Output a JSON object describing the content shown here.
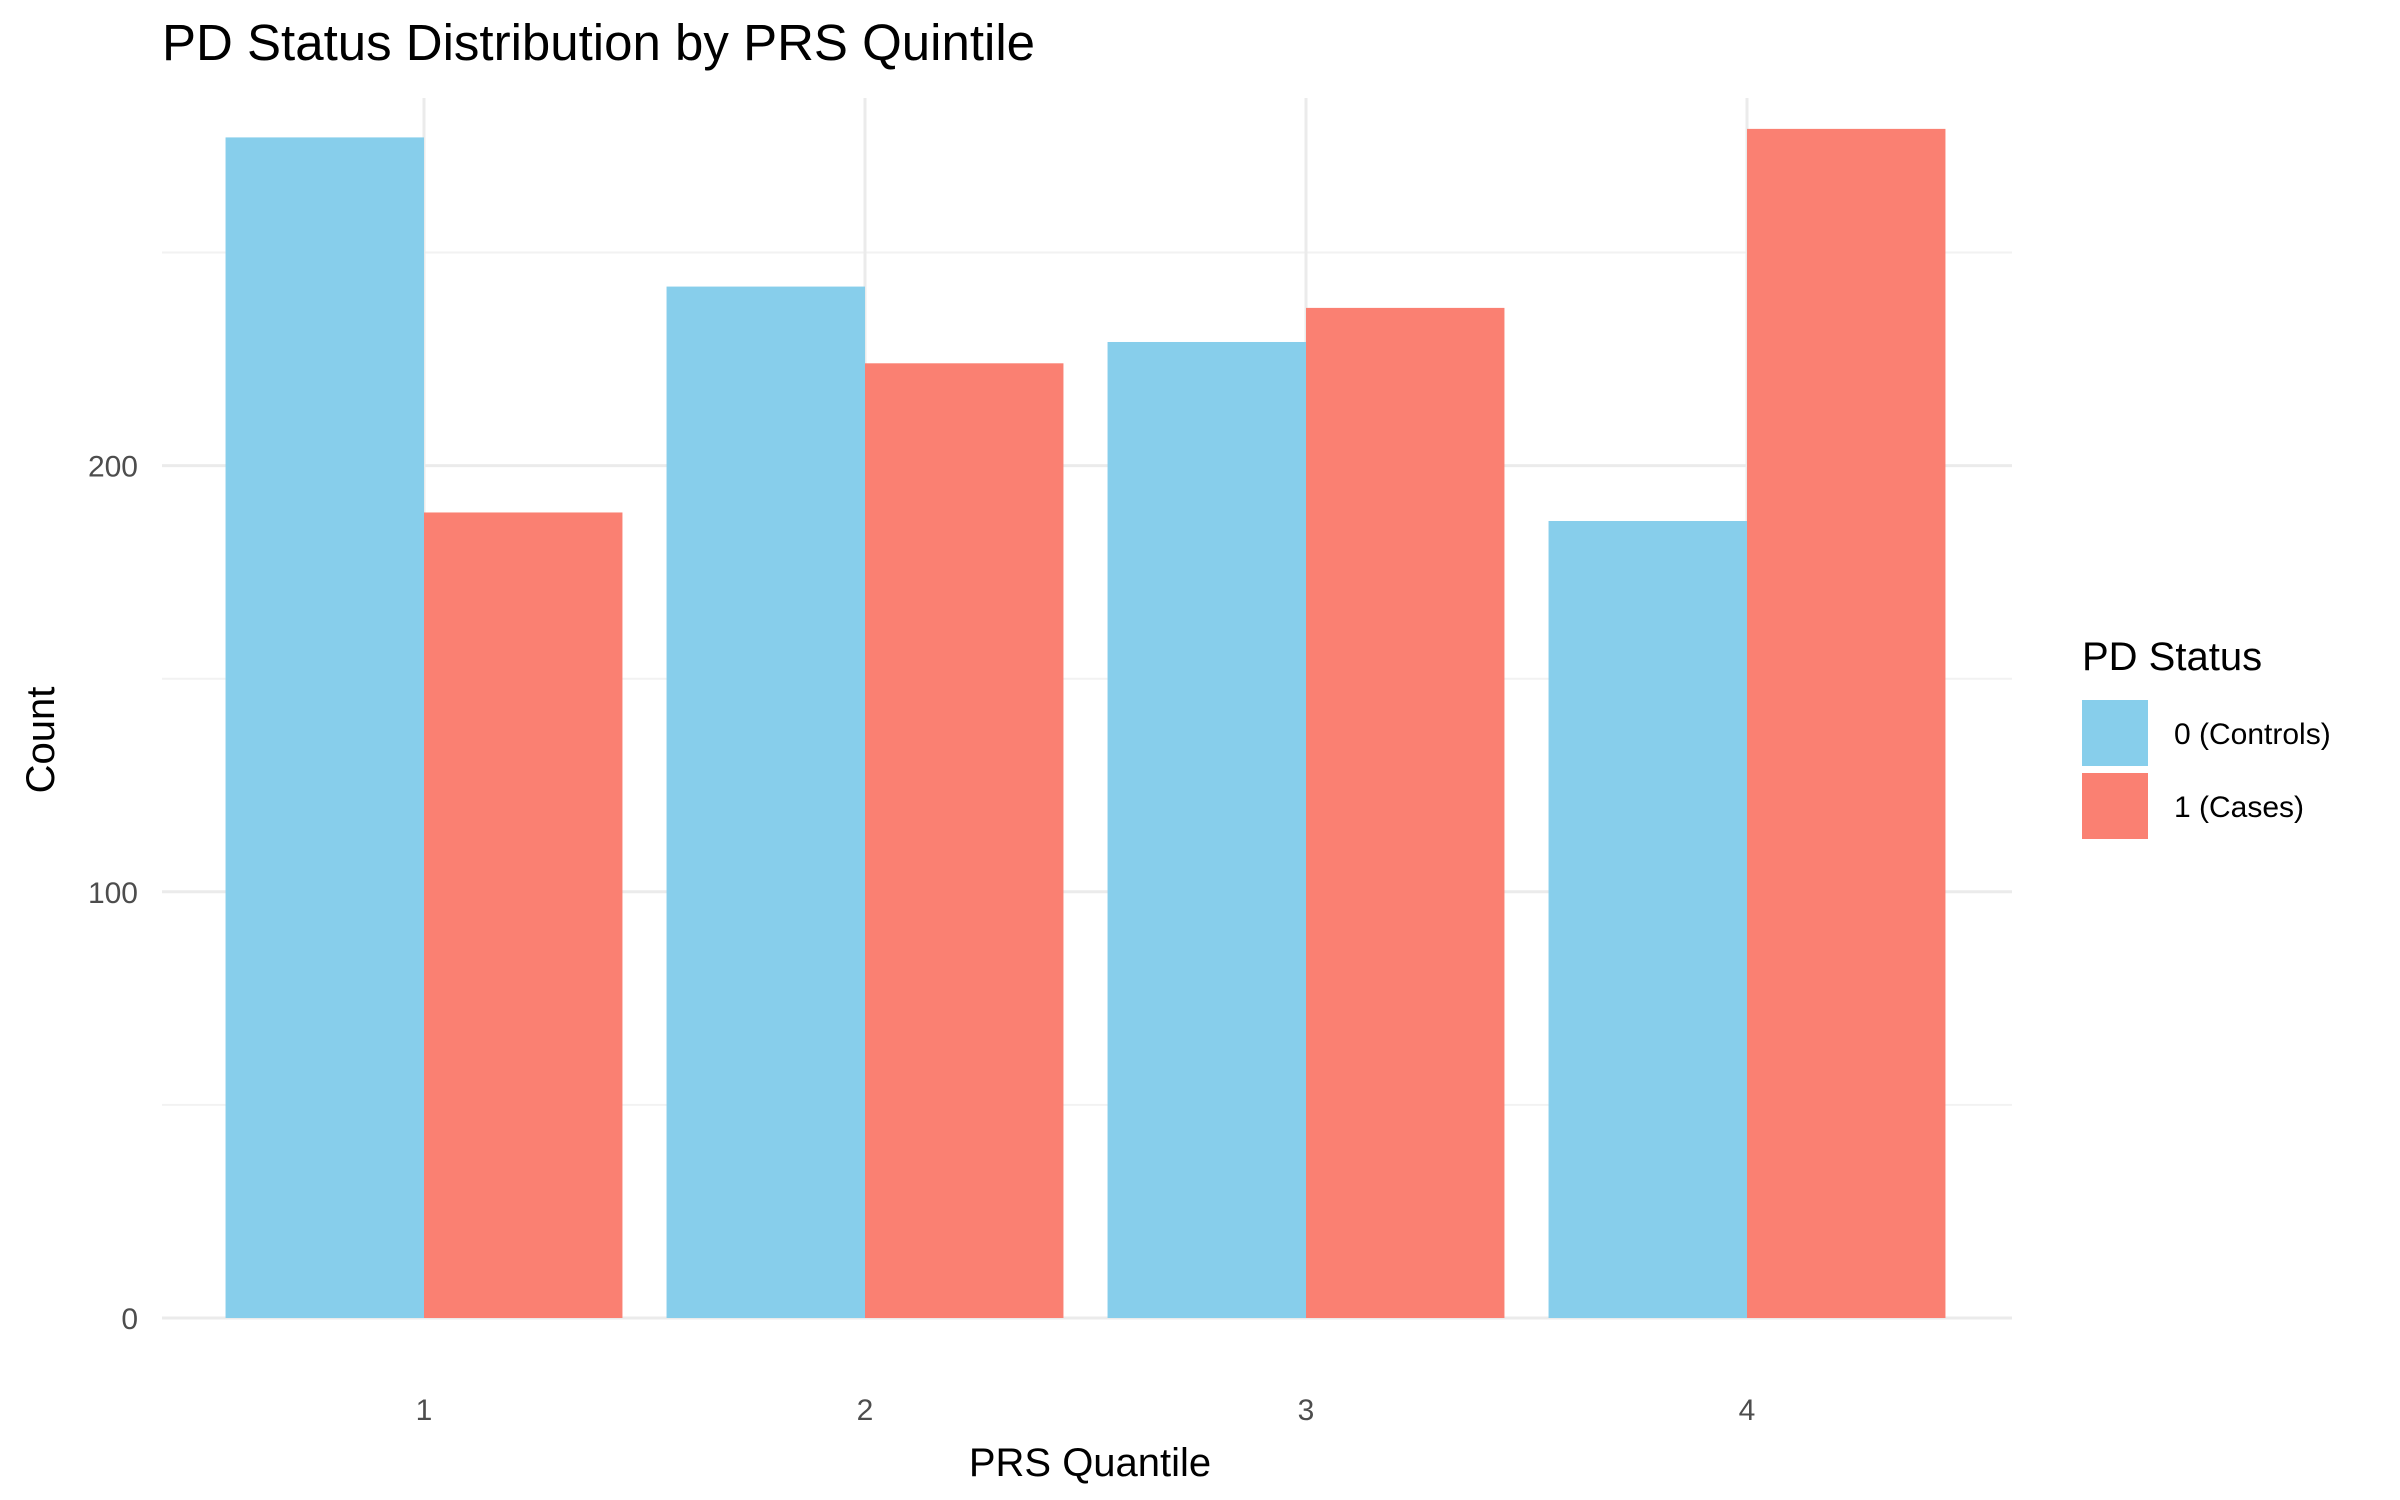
{
  "chart_data": {
    "type": "bar",
    "title": "PD Status Distribution by PRS Quintile",
    "xlabel": "PRS Quantile",
    "ylabel": "Count",
    "categories": [
      "1",
      "2",
      "3",
      "4"
    ],
    "series": [
      {
        "name": "0 (Controls)",
        "color": "#87CEEB",
        "values": [
          277,
          242,
          229,
          187
        ]
      },
      {
        "name": "1 (Cases)",
        "color": "#FA8072",
        "values": [
          189,
          224,
          237,
          279
        ]
      }
    ],
    "ylim": [
      0,
      290
    ],
    "yticks": [
      0,
      100,
      200
    ],
    "y_minor_ticks": [
      50,
      150,
      250
    ],
    "grid": true,
    "legend": {
      "title": "PD Status",
      "position": "right"
    }
  }
}
